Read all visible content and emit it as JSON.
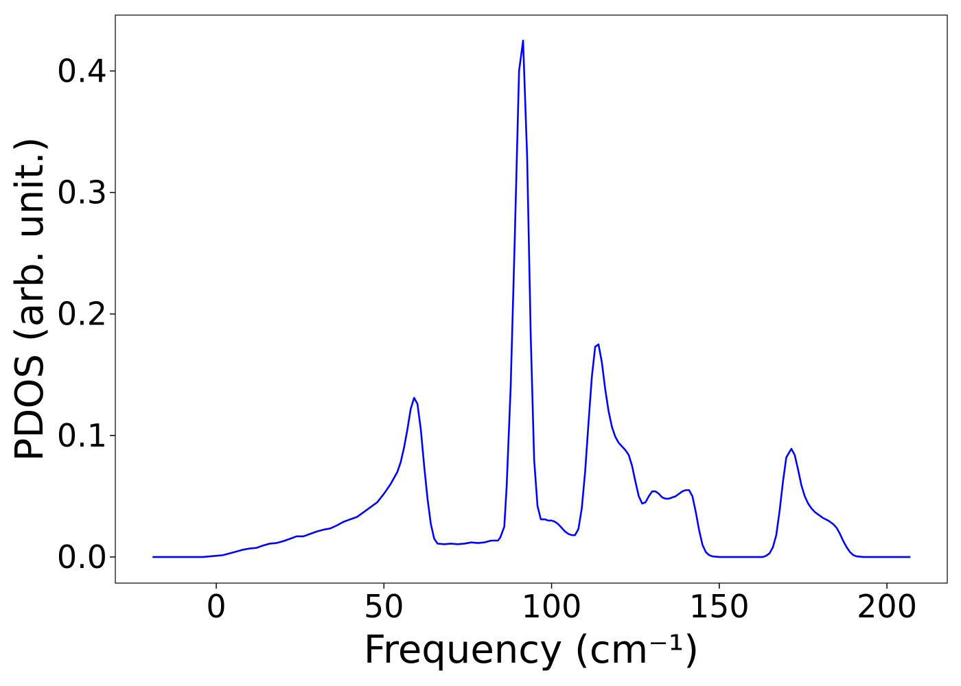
{
  "chart_data": {
    "type": "line",
    "xlabel": "Frequency (cm⁻¹)",
    "ylabel": "PDOS (arb. unit.)",
    "xlim": [
      -30.1,
      218
    ],
    "ylim": [
      -0.0215,
      0.446
    ],
    "xticks": [
      0,
      50,
      100,
      150,
      200
    ],
    "yticks": [
      {
        "value": 0,
        "label": "0.0"
      },
      0.1,
      0.2,
      0.3,
      0.4
    ],
    "x": [
      -19,
      -4,
      -2,
      0,
      2,
      4,
      6,
      8,
      10,
      12,
      14,
      16,
      18,
      20,
      22,
      24,
      26,
      28,
      30,
      32,
      34,
      36,
      38,
      40,
      42,
      44,
      46,
      48,
      50,
      52,
      54,
      55,
      56,
      57,
      58,
      59,
      60,
      61,
      62,
      63,
      64,
      65,
      66,
      68,
      70,
      72,
      74,
      76,
      78,
      80,
      82,
      84,
      84.7,
      85.9,
      86.6,
      87.8,
      89,
      90.3,
      91.5,
      92.7,
      93.8,
      94.8,
      95.8,
      96.8,
      98,
      99,
      100,
      101,
      102,
      103,
      104,
      105,
      106,
      107,
      108,
      109,
      110,
      111,
      112,
      113,
      114,
      115,
      116,
      117,
      118,
      119,
      120,
      121,
      122,
      123,
      124,
      125,
      126,
      127,
      128,
      129,
      130,
      131,
      132,
      133,
      134,
      135,
      136,
      137,
      138,
      139,
      140,
      141,
      142,
      143,
      144,
      145,
      146,
      147,
      148,
      150,
      163,
      164,
      165,
      166,
      167,
      168,
      169,
      170,
      171.5,
      172.5,
      173.5,
      174.5,
      175.5,
      176.5,
      177.5,
      178.5,
      179.5,
      181,
      182.5,
      184,
      185,
      186,
      187,
      188,
      189,
      190,
      191,
      193,
      207
    ],
    "series": [
      {
        "name": "PDOS",
        "color": "#0000ff",
        "values": [
          0,
          0,
          0.0005,
          0.001,
          0.0015,
          0.003,
          0.0045,
          0.006,
          0.007,
          0.0075,
          0.0095,
          0.011,
          0.0115,
          0.013,
          0.015,
          0.017,
          0.017,
          0.019,
          0.021,
          0.0225,
          0.0235,
          0.026,
          0.029,
          0.031,
          0.033,
          0.037,
          0.041,
          0.045,
          0.052,
          0.06,
          0.07,
          0.078,
          0.09,
          0.105,
          0.122,
          0.131,
          0.126,
          0.105,
          0.075,
          0.048,
          0.027,
          0.015,
          0.011,
          0.0105,
          0.011,
          0.0105,
          0.011,
          0.012,
          0.0115,
          0.012,
          0.0135,
          0.0135,
          0.016,
          0.025,
          0.058,
          0.14,
          0.26,
          0.4,
          0.425,
          0.33,
          0.18,
          0.08,
          0.042,
          0.031,
          0.031,
          0.03,
          0.03,
          0.029,
          0.027,
          0.024,
          0.021,
          0.019,
          0.018,
          0.018,
          0.023,
          0.04,
          0.07,
          0.11,
          0.148,
          0.173,
          0.175,
          0.16,
          0.138,
          0.12,
          0.107,
          0.099,
          0.094,
          0.091,
          0.088,
          0.084,
          0.075,
          0.062,
          0.05,
          0.044,
          0.045,
          0.05,
          0.054,
          0.054,
          0.052,
          0.049,
          0.048,
          0.048,
          0.049,
          0.05,
          0.052,
          0.054,
          0.055,
          0.055,
          0.05,
          0.037,
          0.022,
          0.01,
          0.004,
          0.0015,
          0.0005,
          0,
          0,
          0.001,
          0.003,
          0.008,
          0.018,
          0.038,
          0.062,
          0.082,
          0.089,
          0.084,
          0.072,
          0.059,
          0.05,
          0.044,
          0.04,
          0.037,
          0.035,
          0.032,
          0.03,
          0.027,
          0.024,
          0.019,
          0.013,
          0.008,
          0.004,
          0.0015,
          0.0005,
          0,
          0
        ]
      }
    ]
  }
}
